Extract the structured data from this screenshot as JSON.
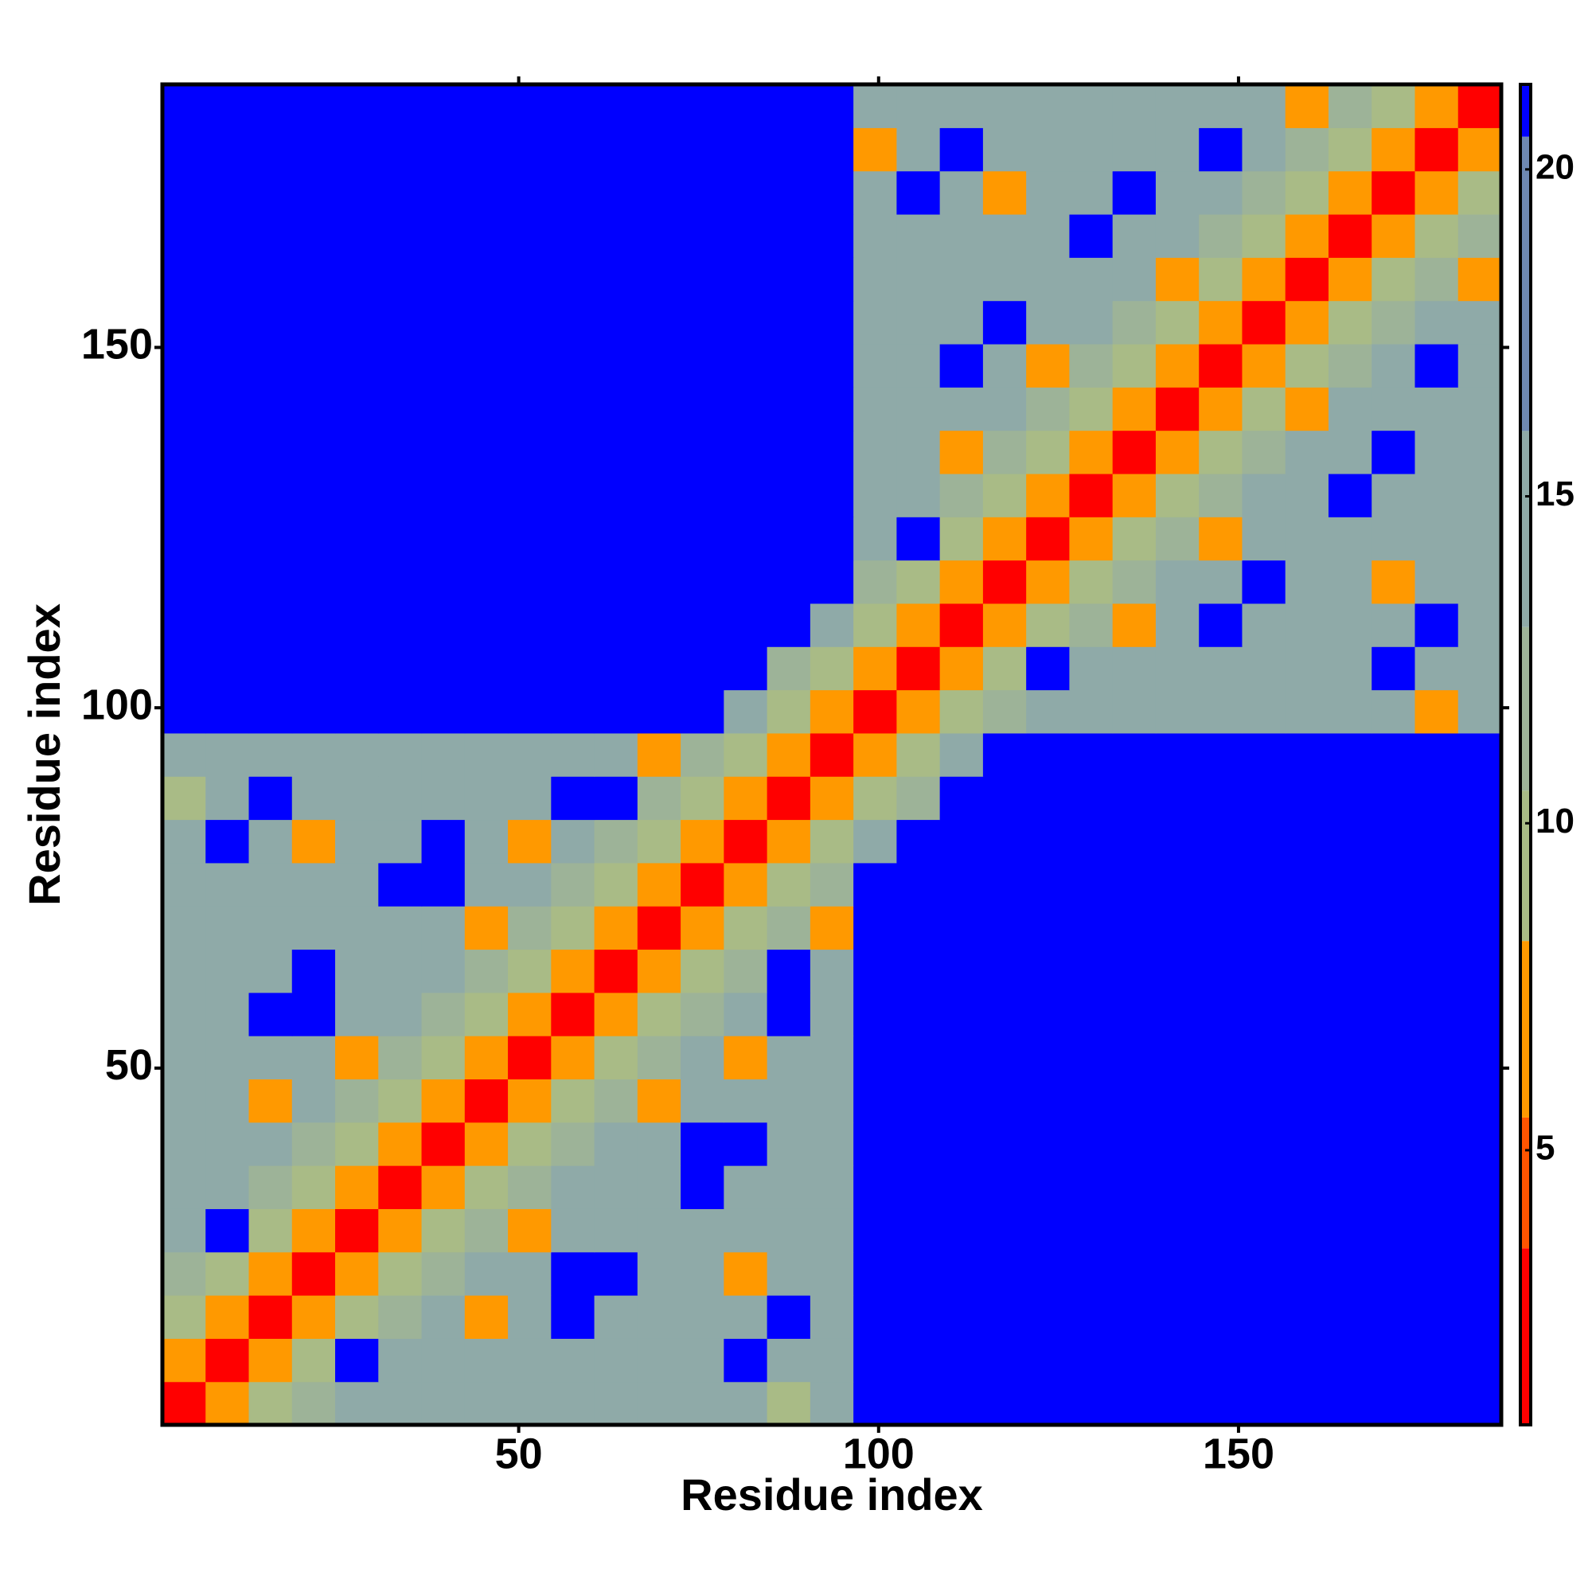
{
  "chart_data": {
    "type": "heatmap",
    "x_label": "Residue index",
    "y_label": "Residue index",
    "xlim": [
      0.5,
      186.5
    ],
    "ylim": [
      0.5,
      186.5
    ],
    "xticks": [
      50,
      100,
      150
    ],
    "yticks": [
      50,
      100,
      150
    ],
    "colorbar": {
      "lim": [
        0.8,
        21.3
      ],
      "ticks": [
        5,
        10,
        15,
        20
      ]
    },
    "colorscale": [
      {
        "max": 3.5,
        "color": "#ff0000"
      },
      {
        "max": 5.5,
        "color": "#ff5500"
      },
      {
        "max": 8.2,
        "color": "#ff9900"
      },
      {
        "max": 10.5,
        "color": "#a9bb86"
      },
      {
        "max": 13,
        "color": "#9db398"
      },
      {
        "max": 16,
        "color": "#8faaa8"
      },
      {
        "max": 20.5,
        "color": "#6e88b2"
      },
      {
        "max": 21.3,
        "color": "#0000ff"
      }
    ],
    "z": [
      [
        2,
        6,
        9,
        12,
        14,
        14,
        14,
        14,
        14,
        14,
        14,
        14,
        14,
        14,
        10,
        14,
        21,
        21,
        21,
        21,
        21,
        21,
        21,
        21,
        21,
        21,
        21,
        21,
        21,
        21,
        21
      ],
      [
        6,
        2,
        6,
        9,
        21,
        14,
        14,
        14,
        14,
        14,
        14,
        14,
        14,
        21,
        14,
        14,
        21,
        21,
        21,
        21,
        21,
        21,
        21,
        21,
        21,
        21,
        21,
        21,
        21,
        21,
        21
      ],
      [
        9,
        6,
        2,
        6,
        9,
        12,
        14,
        7,
        14,
        21,
        14,
        14,
        14,
        14,
        21,
        14,
        21,
        21,
        21,
        21,
        21,
        21,
        21,
        21,
        21,
        21,
        21,
        21,
        21,
        21,
        21
      ],
      [
        12,
        9,
        6,
        2,
        6,
        9,
        12,
        14,
        14,
        21,
        21,
        14,
        14,
        7,
        14,
        14,
        21,
        21,
        21,
        21,
        21,
        21,
        21,
        21,
        21,
        21,
        21,
        21,
        21,
        21,
        21
      ],
      [
        14,
        21,
        9,
        6,
        2,
        6,
        9,
        12,
        7,
        14,
        14,
        14,
        14,
        14,
        14,
        14,
        21,
        21,
        21,
        21,
        21,
        21,
        21,
        21,
        21,
        21,
        21,
        21,
        21,
        21,
        21
      ],
      [
        14,
        14,
        12,
        9,
        6,
        2,
        6,
        9,
        12,
        14,
        14,
        14,
        21,
        14,
        14,
        14,
        21,
        21,
        21,
        21,
        21,
        21,
        21,
        21,
        21,
        21,
        21,
        21,
        21,
        21,
        21
      ],
      [
        14,
        14,
        14,
        12,
        9,
        6,
        2,
        6,
        9,
        12,
        14,
        14,
        21,
        21,
        14,
        14,
        21,
        21,
        21,
        21,
        21,
        21,
        21,
        21,
        21,
        21,
        21,
        21,
        21,
        21,
        21
      ],
      [
        14,
        14,
        7,
        14,
        12,
        9,
        6,
        2,
        6,
        9,
        12,
        7,
        14,
        14,
        14,
        14,
        21,
        21,
        21,
        21,
        21,
        21,
        21,
        21,
        21,
        21,
        21,
        21,
        21,
        21,
        21
      ],
      [
        14,
        14,
        14,
        14,
        7,
        12,
        9,
        6,
        2,
        6,
        9,
        12,
        14,
        7,
        14,
        14,
        21,
        21,
        21,
        21,
        21,
        21,
        21,
        21,
        21,
        21,
        21,
        21,
        21,
        21,
        21
      ],
      [
        14,
        14,
        21,
        21,
        14,
        14,
        12,
        9,
        6,
        2,
        6,
        9,
        12,
        14,
        21,
        14,
        21,
        21,
        21,
        21,
        21,
        21,
        21,
        21,
        21,
        21,
        21,
        21,
        21,
        21,
        21
      ],
      [
        14,
        14,
        14,
        21,
        14,
        14,
        14,
        12,
        9,
        6,
        2,
        6,
        9,
        12,
        21,
        14,
        21,
        21,
        21,
        21,
        21,
        21,
        21,
        21,
        21,
        21,
        21,
        21,
        21,
        21,
        21
      ],
      [
        14,
        14,
        14,
        14,
        14,
        14,
        14,
        7,
        12,
        9,
        6,
        2,
        6,
        9,
        12,
        7,
        21,
        21,
        21,
        21,
        21,
        21,
        21,
        21,
        21,
        21,
        21,
        21,
        21,
        21,
        21
      ],
      [
        14,
        14,
        14,
        14,
        14,
        21,
        21,
        14,
        14,
        12,
        9,
        6,
        2,
        6,
        9,
        12,
        21,
        21,
        21,
        21,
        21,
        21,
        21,
        21,
        21,
        21,
        21,
        21,
        21,
        21,
        21
      ],
      [
        14,
        21,
        14,
        7,
        14,
        14,
        21,
        14,
        7,
        14,
        12,
        9,
        6,
        2,
        6,
        9,
        14,
        21,
        21,
        21,
        21,
        21,
        21,
        21,
        21,
        21,
        21,
        21,
        21,
        21,
        21
      ],
      [
        10,
        14,
        21,
        14,
        14,
        14,
        14,
        14,
        14,
        21,
        21,
        12,
        9,
        6,
        2,
        6,
        9,
        13,
        21,
        21,
        21,
        21,
        21,
        21,
        21,
        21,
        21,
        21,
        21,
        21,
        21
      ],
      [
        14,
        14,
        14,
        14,
        14,
        14,
        14,
        14,
        14,
        14,
        14,
        7,
        12,
        9,
        6,
        2,
        6,
        9,
        14,
        21,
        21,
        21,
        21,
        21,
        21,
        21,
        21,
        21,
        21,
        21,
        21
      ],
      [
        21,
        21,
        21,
        21,
        21,
        21,
        21,
        21,
        21,
        21,
        21,
        21,
        21,
        14,
        9,
        6,
        2,
        6,
        9,
        12,
        14,
        14,
        14,
        14,
        14,
        14,
        14,
        14,
        14,
        7,
        14
      ],
      [
        21,
        21,
        21,
        21,
        21,
        21,
        21,
        21,
        21,
        21,
        21,
        21,
        21,
        21,
        13,
        9,
        6,
        2,
        6,
        9,
        21,
        14,
        14,
        14,
        14,
        14,
        14,
        14,
        21,
        14,
        14
      ],
      [
        21,
        21,
        21,
        21,
        21,
        21,
        21,
        21,
        21,
        21,
        21,
        21,
        21,
        21,
        21,
        14,
        9,
        6,
        2,
        6,
        9,
        12,
        7,
        14,
        21,
        14,
        14,
        14,
        14,
        21,
        14
      ],
      [
        21,
        21,
        21,
        21,
        21,
        21,
        21,
        21,
        21,
        21,
        21,
        21,
        21,
        21,
        21,
        21,
        12,
        9,
        6,
        2,
        6,
        9,
        12,
        14,
        14,
        21,
        14,
        14,
        7,
        14,
        14
      ],
      [
        21,
        21,
        21,
        21,
        21,
        21,
        21,
        21,
        21,
        21,
        21,
        21,
        21,
        21,
        21,
        21,
        14,
        21,
        9,
        6,
        2,
        6,
        9,
        12,
        7,
        14,
        14,
        14,
        14,
        14,
        14
      ],
      [
        21,
        21,
        21,
        21,
        21,
        21,
        21,
        21,
        21,
        21,
        21,
        21,
        21,
        21,
        21,
        21,
        14,
        14,
        12,
        9,
        6,
        2,
        6,
        9,
        12,
        14,
        14,
        21,
        14,
        14,
        14
      ],
      [
        21,
        21,
        21,
        21,
        21,
        21,
        21,
        21,
        21,
        21,
        21,
        21,
        21,
        21,
        21,
        21,
        14,
        14,
        7,
        12,
        9,
        6,
        2,
        6,
        9,
        12,
        14,
        14,
        21,
        14,
        14
      ],
      [
        21,
        21,
        21,
        21,
        21,
        21,
        21,
        21,
        21,
        21,
        21,
        21,
        21,
        21,
        21,
        21,
        14,
        14,
        14,
        14,
        12,
        9,
        6,
        2,
        6,
        9,
        7,
        14,
        14,
        14,
        14
      ],
      [
        21,
        21,
        21,
        21,
        21,
        21,
        21,
        21,
        21,
        21,
        21,
        21,
        21,
        21,
        21,
        21,
        14,
        14,
        21,
        14,
        7,
        12,
        9,
        6,
        2,
        6,
        9,
        12,
        14,
        21,
        14
      ],
      [
        21,
        21,
        21,
        21,
        21,
        21,
        21,
        21,
        21,
        21,
        21,
        21,
        21,
        21,
        21,
        21,
        14,
        14,
        14,
        21,
        14,
        14,
        12,
        9,
        6,
        2,
        6,
        9,
        12,
        14,
        14
      ],
      [
        21,
        21,
        21,
        21,
        21,
        21,
        21,
        21,
        21,
        21,
        21,
        21,
        21,
        21,
        21,
        21,
        14,
        14,
        14,
        14,
        14,
        14,
        14,
        7,
        9,
        6,
        2,
        6,
        9,
        12,
        7
      ],
      [
        21,
        21,
        21,
        21,
        21,
        21,
        21,
        21,
        21,
        21,
        21,
        21,
        21,
        21,
        21,
        21,
        14,
        14,
        14,
        14,
        14,
        21,
        14,
        14,
        12,
        9,
        6,
        2,
        6,
        9,
        12
      ],
      [
        21,
        21,
        21,
        21,
        21,
        21,
        21,
        21,
        21,
        21,
        21,
        21,
        21,
        21,
        21,
        21,
        14,
        21,
        14,
        7,
        14,
        14,
        21,
        14,
        14,
        12,
        9,
        6,
        2,
        6,
        9
      ],
      [
        21,
        21,
        21,
        21,
        21,
        21,
        21,
        21,
        21,
        21,
        21,
        21,
        21,
        21,
        21,
        21,
        7,
        14,
        21,
        14,
        14,
        14,
        14,
        14,
        21,
        14,
        12,
        9,
        6,
        2,
        6
      ],
      [
        21,
        21,
        21,
        21,
        21,
        21,
        21,
        21,
        21,
        21,
        21,
        21,
        21,
        21,
        21,
        21,
        14,
        14,
        14,
        14,
        14,
        14,
        14,
        14,
        14,
        14,
        7,
        12,
        9,
        6,
        2
      ]
    ]
  }
}
